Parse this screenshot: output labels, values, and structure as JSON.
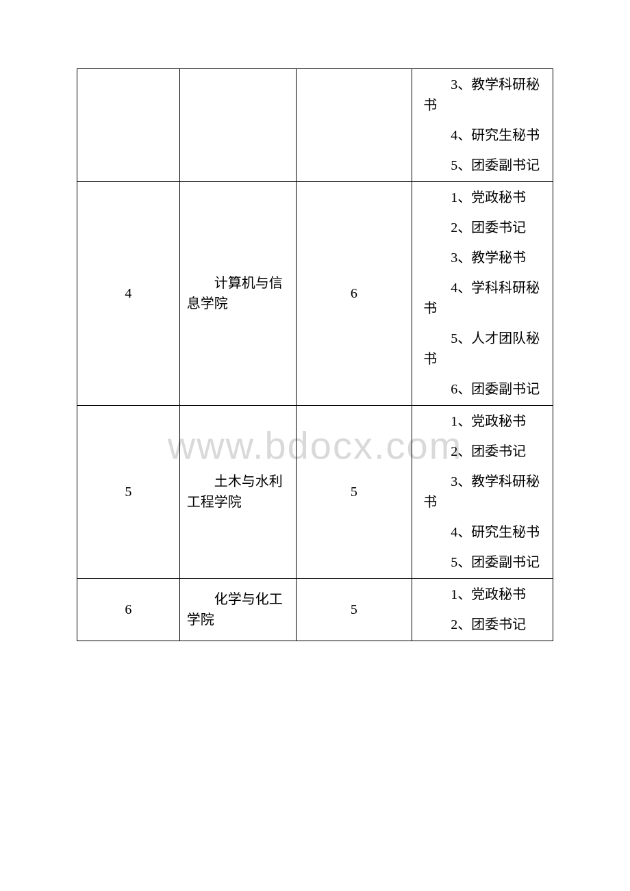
{
  "watermark": "www.bdocx.com",
  "rows": [
    {
      "num": "",
      "dept": "",
      "count": "",
      "positions": [
        "3、教学科研秘书",
        "4、研究生秘书",
        "5、团委副书记"
      ]
    },
    {
      "num": "4",
      "dept": "计算机与信息学院",
      "count": "6",
      "positions": [
        "1、党政秘书",
        "2、团委书记",
        "3、教学秘书",
        "4、学科科研秘书",
        "5、人才团队秘书",
        "6、团委副书记"
      ]
    },
    {
      "num": "5",
      "dept": "土木与水利工程学院",
      "count": "5",
      "positions": [
        "1、党政秘书",
        "2、团委书记",
        "3、教学科研秘书",
        "4、研究生秘书",
        "5、团委副书记"
      ]
    },
    {
      "num": "6",
      "dept": "化学与化工学院",
      "count": "5",
      "positions": [
        "1、党政秘书",
        "2、团委书记"
      ]
    }
  ],
  "colors": {
    "text": "#000000",
    "border": "#000000",
    "background": "#ffffff",
    "watermark": "#d9d9d9"
  }
}
